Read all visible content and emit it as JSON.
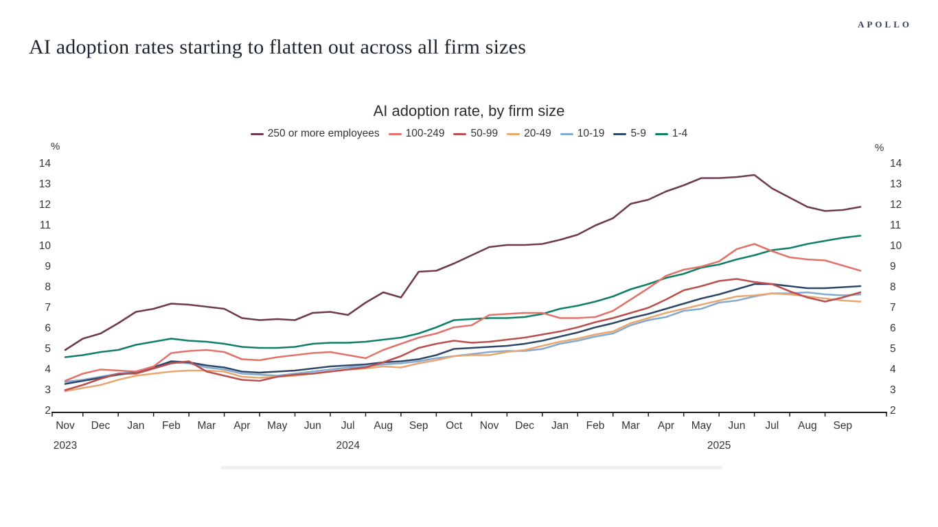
{
  "header": {
    "title": "AI adoption rates starting to flatten out across all firm sizes",
    "brand": "APOLLO"
  },
  "chart": {
    "title": "AI adoption rate, by firm size",
    "y_axis": {
      "unit": "%",
      "ticks": [
        14,
        13,
        12,
        11,
        10,
        9,
        8,
        7,
        6,
        5,
        4,
        3,
        2
      ]
    },
    "x_axis": {
      "months": [
        "Nov",
        "Dec",
        "Jan",
        "Feb",
        "Mar",
        "Apr",
        "May",
        "Jun",
        "Jul",
        "Aug",
        "Sep",
        "Oct",
        "Nov",
        "Dec",
        "Jan",
        "Feb",
        "Mar",
        "Apr",
        "May",
        "Jun",
        "Jul",
        "Aug",
        "Sep"
      ],
      "years": [
        {
          "label": "2023",
          "point_index": 0
        },
        {
          "label": "2024",
          "point_index": 16
        },
        {
          "label": "2025",
          "point_index": 37
        }
      ]
    }
  },
  "chart_data": {
    "type": "line",
    "title": "AI adoption rate, by firm size",
    "ylabel": "%",
    "ylim": [
      2,
      14
    ],
    "grid": false,
    "legend_position": "top",
    "x_points": 46,
    "points_per_month": 2,
    "categories_monthly": [
      "Nov 2023",
      "Dec 2023",
      "Jan 2024",
      "Feb 2024",
      "Mar 2024",
      "Apr 2024",
      "May 2024",
      "Jun 2024",
      "Jul 2024",
      "Aug 2024",
      "Sep 2024",
      "Oct 2024",
      "Nov 2024",
      "Dec 2024",
      "Jan 2025",
      "Feb 2025",
      "Mar 2025",
      "Apr 2025",
      "May 2025",
      "Jun 2025",
      "Jul 2025",
      "Aug 2025",
      "Sep 2025"
    ],
    "series": [
      {
        "name": "250 or more employees",
        "color": "#6e3a50",
        "values": [
          5.0,
          5.55,
          5.8,
          6.3,
          6.85,
          7.0,
          7.25,
          7.2,
          7.1,
          7.0,
          6.55,
          6.45,
          6.5,
          6.45,
          6.8,
          6.85,
          6.7,
          7.3,
          7.8,
          7.55,
          8.8,
          8.85,
          9.2,
          9.6,
          10.0,
          10.1,
          10.1,
          10.15,
          10.35,
          10.6,
          11.05,
          11.4,
          12.1,
          12.3,
          12.7,
          13.0,
          13.35,
          13.35,
          13.4,
          13.5,
          12.85,
          12.4,
          11.95,
          11.75,
          11.8,
          11.95
        ]
      },
      {
        "name": "100-249",
        "color": "#e0746a",
        "values": [
          3.5,
          3.85,
          4.05,
          4.0,
          3.95,
          4.2,
          4.85,
          4.95,
          5.0,
          4.9,
          4.55,
          4.5,
          4.65,
          4.75,
          4.85,
          4.9,
          4.75,
          4.6,
          5.0,
          5.3,
          5.6,
          5.8,
          6.1,
          6.2,
          6.7,
          6.75,
          6.8,
          6.8,
          6.55,
          6.55,
          6.6,
          6.9,
          7.45,
          8.0,
          8.6,
          8.9,
          9.05,
          9.3,
          9.9,
          10.15,
          9.8,
          9.5,
          9.4,
          9.35,
          9.1,
          8.85
        ]
      },
      {
        "name": "50-99",
        "color": "#bb4f4d",
        "values": [
          3.05,
          3.3,
          3.6,
          3.85,
          3.85,
          4.1,
          4.35,
          4.45,
          3.95,
          3.75,
          3.55,
          3.5,
          3.7,
          3.8,
          3.85,
          3.95,
          4.05,
          4.15,
          4.4,
          4.7,
          5.1,
          5.3,
          5.45,
          5.35,
          5.4,
          5.5,
          5.6,
          5.75,
          5.9,
          6.1,
          6.35,
          6.55,
          6.8,
          7.05,
          7.45,
          7.9,
          8.1,
          8.35,
          8.45,
          8.3,
          8.2,
          7.85,
          7.55,
          7.35,
          7.55,
          7.8
        ]
      },
      {
        "name": "20-49",
        "color": "#e8a671",
        "values": [
          3.0,
          3.15,
          3.3,
          3.55,
          3.75,
          3.85,
          3.95,
          4.0,
          4.0,
          3.95,
          3.7,
          3.65,
          3.7,
          3.75,
          3.85,
          3.95,
          4.05,
          4.1,
          4.2,
          4.15,
          4.35,
          4.5,
          4.7,
          4.75,
          4.75,
          4.9,
          5.0,
          5.2,
          5.4,
          5.55,
          5.75,
          5.9,
          6.3,
          6.55,
          6.8,
          7.0,
          7.2,
          7.4,
          7.6,
          7.65,
          7.75,
          7.7,
          7.6,
          7.5,
          7.4,
          7.35
        ]
      },
      {
        "name": "10-19",
        "color": "#84aacf",
        "values": [
          3.45,
          3.55,
          3.7,
          3.85,
          3.95,
          4.2,
          4.4,
          4.35,
          4.15,
          4.05,
          3.85,
          3.8,
          3.75,
          3.85,
          3.95,
          4.05,
          4.15,
          4.2,
          4.3,
          4.35,
          4.45,
          4.6,
          4.7,
          4.8,
          4.9,
          4.95,
          4.95,
          5.05,
          5.3,
          5.45,
          5.65,
          5.8,
          6.2,
          6.45,
          6.6,
          6.9,
          7.0,
          7.3,
          7.4,
          7.6,
          7.75,
          7.75,
          7.8,
          7.7,
          7.65,
          7.7
        ]
      },
      {
        "name": "5-9",
        "color": "#2f4768",
        "values": [
          3.35,
          3.5,
          3.65,
          3.8,
          3.9,
          4.15,
          4.45,
          4.4,
          4.25,
          4.15,
          3.95,
          3.9,
          3.95,
          4.0,
          4.1,
          4.2,
          4.25,
          4.3,
          4.4,
          4.45,
          4.55,
          4.75,
          5.05,
          5.1,
          5.15,
          5.2,
          5.3,
          5.45,
          5.65,
          5.85,
          6.1,
          6.3,
          6.55,
          6.75,
          7.0,
          7.25,
          7.5,
          7.7,
          7.95,
          8.2,
          8.2,
          8.1,
          8.0,
          8.0,
          8.05,
          8.1
        ]
      },
      {
        "name": "1-4",
        "color": "#0f8065",
        "values": [
          4.65,
          4.75,
          4.9,
          5.0,
          5.25,
          5.4,
          5.55,
          5.45,
          5.4,
          5.3,
          5.15,
          5.1,
          5.1,
          5.15,
          5.3,
          5.35,
          5.35,
          5.4,
          5.5,
          5.6,
          5.8,
          6.1,
          6.45,
          6.5,
          6.55,
          6.55,
          6.6,
          6.75,
          7.0,
          7.15,
          7.35,
          7.6,
          7.95,
          8.2,
          8.5,
          8.7,
          9.0,
          9.15,
          9.4,
          9.6,
          9.85,
          9.95,
          10.15,
          10.3,
          10.45,
          10.55
        ]
      }
    ]
  }
}
